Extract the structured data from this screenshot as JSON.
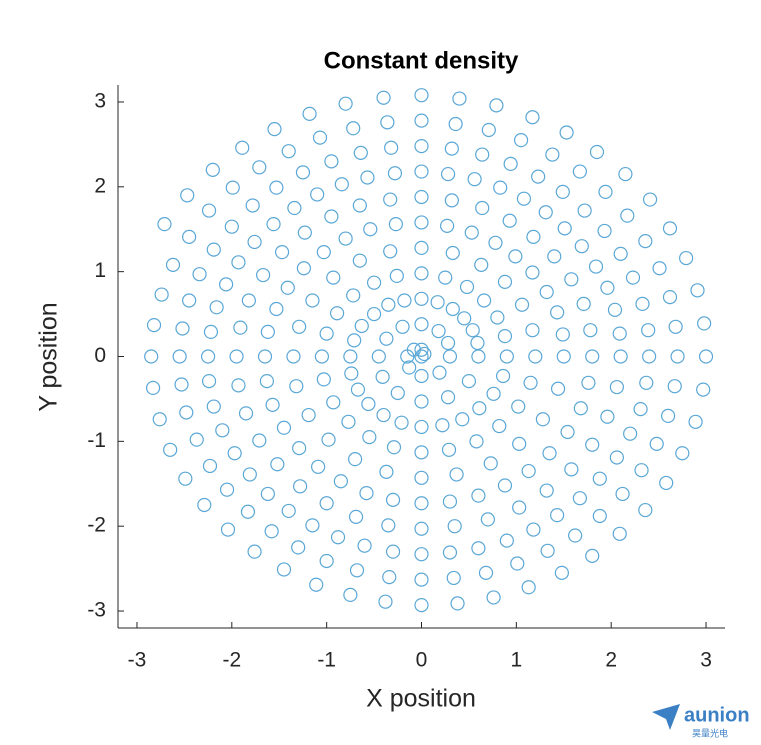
{
  "chart_data": {
    "type": "scatter",
    "title": "Constant density",
    "xlabel": "X position",
    "ylabel": "Y position",
    "color": "#5aa7d6",
    "marker": "o",
    "xlim": [
      -3.2,
      3.2
    ],
    "ylim": [
      -3.2,
      3.2
    ],
    "xticks": [
      -3,
      -2,
      -1,
      0,
      1,
      2,
      3
    ],
    "yticks": [
      -3,
      -2,
      -1,
      0,
      1,
      2,
      3
    ],
    "x": [
      0,
      0.03,
      0,
      -0.08,
      -0.15,
      -0.13,
      0,
      0.19,
      0.3,
      0.28,
      0.18,
      0,
      -0.2,
      -0.37,
      -0.45,
      -0.41,
      -0.25,
      0,
      0.28,
      0.5,
      0.6,
      0.59,
      0.54,
      0.45,
      0.33,
      0.17,
      0,
      -0.18,
      -0.35,
      -0.5,
      -0.63,
      -0.71,
      -0.75,
      -0.74,
      -0.67,
      -0.56,
      -0.4,
      -0.21,
      0,
      0.22,
      0.43,
      0.61,
      0.76,
      0.86,
      0.9,
      0.88,
      0.8,
      0.66,
      0.48,
      0.25,
      0,
      -0.26,
      -0.5,
      -0.72,
      -0.89,
      -1,
      -1.05,
      -1.03,
      -0.93,
      -0.77,
      -0.55,
      -0.29,
      0,
      0.29,
      0.58,
      0.82,
      1.02,
      1.15,
      1.2,
      1.17,
      1.06,
      0.88,
      0.63,
      0.33,
      0,
      -0.33,
      -0.65,
      -0.93,
      -1.15,
      -1.29,
      -1.35,
      -1.32,
      -1.19,
      -0.98,
      -0.7,
      -0.37,
      0,
      0.37,
      0.73,
      1.03,
      1.28,
      1.44,
      1.5,
      1.49,
      1.43,
      1.32,
      1.17,
      0.99,
      0.78,
      0.53,
      0.27,
      0,
      -0.27,
      -0.54,
      -0.8,
      -1.03,
      -1.24,
      -1.41,
      -1.53,
      -1.62,
      -1.65,
      -1.63,
      -1.57,
      -1.45,
      -1.29,
      -1.09,
      -0.85,
      -0.58,
      -0.3,
      0,
      0.3,
      0.6,
      0.88,
      1.13,
      1.35,
      1.54,
      1.68,
      1.76,
      1.8,
      1.78,
      1.71,
      1.58,
      1.4,
      1.18,
      0.93,
      0.64,
      0.32,
      0,
      -0.33,
      -0.65,
      -0.95,
      -1.23,
      -1.47,
      -1.67,
      -1.82,
      -1.91,
      -1.95,
      -1.93,
      -1.85,
      -1.71,
      -1.52,
      -1.28,
      -1,
      -0.69,
      -0.35,
      0,
      0.35,
      0.7,
      1.03,
      1.32,
      1.58,
      1.8,
      1.96,
      2.06,
      2.1,
      2.09,
      2.04,
      1.96,
      1.84,
      1.69,
      1.51,
      1.31,
      1.08,
      0.83,
      0.56,
      0.28,
      0,
      -0.28,
      -0.57,
      -0.84,
      -1.1,
      -1.34,
      -1.56,
      -1.76,
      -1.93,
      -2.06,
      -2.16,
      -2.22,
      -2.25,
      -2.24,
      -2.19,
      -2.1,
      -1.97,
      -1.81,
      -1.62,
      -1.4,
      -1.15,
      -0.88,
      -0.6,
      -0.3,
      0,
      0.3,
      0.6,
      0.9,
      1.18,
      1.43,
      1.67,
      1.88,
      2.06,
      2.2,
      2.31,
      2.37,
      2.4,
      2.39,
      2.33,
      2.23,
      2.1,
      1.93,
      1.72,
      1.49,
      1.23,
      0.94,
      0.64,
      0.32,
      0,
      -0.32,
      -0.64,
      -0.95,
      -1.25,
      -1.53,
      -1.78,
      -2,
      -2.19,
      -2.34,
      -2.45,
      -2.52,
      -2.55,
      -2.53,
      -2.48,
      -2.37,
      -2.23,
      -2.05,
      -1.83,
      -1.58,
      -1.3,
      -1,
      -0.68,
      -0.34,
      0,
      0.34,
      0.68,
      1.01,
      1.33,
      1.62,
      1.88,
      2.12,
      2.32,
      2.48,
      2.6,
      2.67,
      2.7,
      2.68,
      2.62,
      2.51,
      2.36,
      2.17,
      1.94,
      1.67,
      1.38,
      1.05,
      0.71,
      0.36,
      0,
      -0.36,
      -0.72,
      -1.07,
      -1.4,
      -1.71,
      -1.99,
      -2.24,
      -2.45,
      -2.62,
      -2.74,
      -2.82,
      -2.85,
      -2.83,
      -2.76,
      -2.65,
      -2.49,
      -2.29,
      -2.04,
      -1.76,
      -1.45,
      -1.11,
      -0.75,
      -0.38,
      0,
      0.38,
      0.76,
      1.13,
      1.48,
      1.8,
      2.09,
      2.36,
      2.58,
      2.75,
      2.89,
      2.97,
      3,
      2.98,
      2.91,
      2.79,
      2.62,
      2.41,
      2.15,
      1.85,
      1.53,
      1.17,
      0.79,
      0.4,
      0,
      -0.4,
      -0.8,
      -1.18,
      -1.55,
      -1.89,
      -2.2,
      -2.47,
      -2.71
    ],
    "y": [
      0,
      0.03,
      0.08,
      0.08,
      0,
      -0.13,
      -0.23,
      -0.19,
      0,
      0.16,
      0.3,
      0.38,
      0.35,
      0.21,
      0,
      -0.24,
      -0.43,
      -0.53,
      -0.48,
      -0.29,
      0,
      0.16,
      0.31,
      0.45,
      0.56,
      0.64,
      0.68,
      0.66,
      0.61,
      0.5,
      0.36,
      0.19,
      0,
      -0.2,
      -0.39,
      -0.56,
      -0.69,
      -0.78,
      -0.83,
      -0.81,
      -0.74,
      -0.61,
      -0.44,
      -0.23,
      0,
      0.24,
      0.46,
      0.66,
      0.82,
      0.93,
      0.98,
      0.95,
      0.87,
      0.72,
      0.51,
      0.27,
      0,
      -0.27,
      -0.54,
      -0.77,
      -0.95,
      -1.07,
      -1.13,
      -1.1,
      -1,
      -0.82,
      -0.59,
      -0.31,
      0,
      0.31,
      0.61,
      0.88,
      1.08,
      1.22,
      1.28,
      1.24,
      1.13,
      0.93,
      0.66,
      0.35,
      0,
      -0.35,
      -0.69,
      -0.98,
      -1.21,
      -1.36,
      -1.43,
      -1.39,
      -1.26,
      -1.03,
      -0.74,
      -0.38,
      0,
      0.26,
      0.52,
      0.76,
      0.99,
      1.18,
      1.34,
      1.46,
      1.54,
      1.58,
      1.56,
      1.5,
      1.39,
      1.23,
      1.04,
      0.81,
      0.56,
      0.29,
      0,
      -0.29,
      -0.57,
      -0.84,
      -1.08,
      -1.3,
      -1.47,
      -1.61,
      -1.69,
      -1.73,
      -1.71,
      -1.64,
      -1.52,
      -1.35,
      -1.14,
      -0.89,
      -0.61,
      -0.31,
      0,
      0.31,
      0.62,
      0.91,
      1.18,
      1.41,
      1.6,
      1.75,
      1.84,
      1.88,
      1.85,
      1.78,
      1.65,
      1.46,
      1.23,
      0.96,
      0.66,
      0.34,
      0,
      -0.34,
      -0.67,
      -0.99,
      -1.27,
      -1.53,
      -1.73,
      -1.89,
      -1.99,
      -2.03,
      -2,
      -1.92,
      -1.78,
      -1.58,
      -1.33,
      -1.04,
      -0.71,
      -0.36,
      0,
      0.27,
      0.55,
      0.81,
      1.06,
      1.3,
      1.51,
      1.7,
      1.86,
      1.99,
      2.09,
      2.15,
      2.18,
      2.16,
      2.11,
      2.03,
      1.91,
      1.75,
      1.56,
      1.35,
      1.11,
      0.85,
      0.58,
      0.29,
      0,
      -0.29,
      -0.59,
      -0.87,
      -1.14,
      -1.39,
      -1.62,
      -1.82,
      -1.99,
      -2.13,
      -2.23,
      -2.3,
      -2.33,
      -2.31,
      -2.26,
      -2.17,
      -2.04,
      -1.87,
      -1.67,
      -1.44,
      -1.19,
      -0.91,
      -0.62,
      -0.31,
      0,
      0.31,
      0.62,
      0.93,
      1.21,
      1.48,
      1.72,
      1.94,
      2.12,
      2.27,
      2.38,
      2.45,
      2.48,
      2.46,
      2.4,
      2.3,
      2.17,
      1.99,
      1.78,
      1.53,
      1.26,
      0.97,
      0.66,
      0.33,
      0,
      -0.33,
      -0.66,
      -0.98,
      -1.29,
      -1.57,
      -1.83,
      -2.06,
      -2.25,
      -2.41,
      -2.52,
      -2.6,
      -2.63,
      -2.61,
      -2.55,
      -2.44,
      -2.29,
      -2.11,
      -1.88,
      -1.62,
      -1.34,
      -1.03,
      -0.7,
      -0.35,
      0,
      0.35,
      0.7,
      1.04,
      1.36,
      1.66,
      1.94,
      2.18,
      2.38,
      2.55,
      2.67,
      2.74,
      2.78,
      2.76,
      2.69,
      2.58,
      2.42,
      2.23,
      1.99,
      1.72,
      1.41,
      1.08,
      0.73,
      0.37,
      0,
      -0.37,
      -0.74,
      -1.1,
      -1.44,
      -1.75,
      -2.04,
      -2.3,
      -2.51,
      -2.69,
      -2.81,
      -2.89,
      -2.93,
      -2.91,
      -2.84,
      -2.72,
      -2.55,
      -2.35,
      -2.09,
      -1.81,
      -1.49,
      -1.14,
      -0.77,
      -0.39,
      0,
      0.39,
      0.78,
      1.16,
      1.51,
      1.85,
      2.15,
      2.41,
      2.64,
      2.82,
      2.96,
      3.04,
      3.08,
      3.05,
      2.98,
      2.86,
      2.68,
      2.46,
      2.2,
      1.9,
      1.56
    ]
  },
  "watermark": {
    "text": "aunion",
    "subtext": "昊量光电"
  }
}
